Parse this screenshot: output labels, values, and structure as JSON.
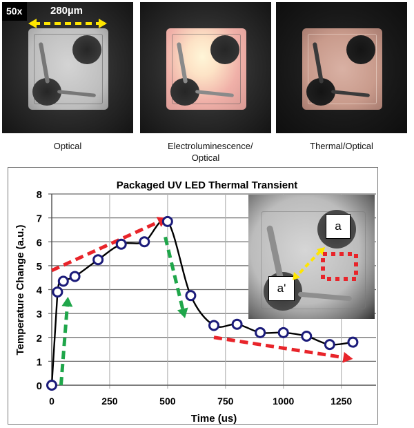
{
  "micrographs": [
    {
      "caption": "Optical",
      "magnification": "50x",
      "scale_bar": "280µm"
    },
    {
      "caption": "Electroluminescence/ Optical"
    },
    {
      "caption": "Thermal/Optical"
    }
  ],
  "inset": {
    "label_a": "a",
    "label_a_prime": "a'"
  },
  "colors": {
    "marker": "#1b1b7a",
    "line": "#000000",
    "heating_arrow": "#e8242a",
    "step_arrow": "#1fa64a",
    "scale_arrow": "#ffe600",
    "hotspot_box": "#e8242a"
  },
  "chart_data": {
    "type": "line",
    "title": "Packaged UV LED Thermal Transient",
    "xlabel": "Time (us)",
    "ylabel": "Temperature Change (a.u.)",
    "xlim": [
      0,
      1400
    ],
    "ylim": [
      0,
      8
    ],
    "xticks": [
      0,
      250,
      500,
      750,
      1000,
      1250
    ],
    "yticks": [
      0,
      1,
      2,
      3,
      4,
      5,
      6,
      7,
      8
    ],
    "grid": true,
    "legend": "none",
    "series": [
      {
        "name": "Temperature Change",
        "x": [
          0,
          25,
          50,
          100,
          200,
          300,
          400,
          500,
          600,
          700,
          800,
          900,
          1000,
          1100,
          1200,
          1300
        ],
        "y": [
          0,
          3.9,
          4.35,
          4.55,
          5.25,
          5.9,
          6.0,
          6.85,
          3.75,
          2.5,
          2.55,
          2.2,
          2.2,
          2.05,
          1.7,
          1.8
        ]
      }
    ],
    "annotations": [
      {
        "type": "arrow",
        "color": "red",
        "style": "dashed",
        "from": [
          0,
          4.8
        ],
        "to": [
          500,
          7.0
        ],
        "meaning": "heating trend"
      },
      {
        "type": "arrow",
        "color": "green",
        "style": "dashed",
        "from": [
          40,
          0
        ],
        "to": [
          70,
          3.7
        ],
        "meaning": "rise"
      },
      {
        "type": "arrow",
        "color": "green",
        "style": "dashed",
        "from": [
          490,
          6.2
        ],
        "to": [
          575,
          2.8
        ],
        "meaning": "fall"
      },
      {
        "type": "arrow",
        "color": "red",
        "style": "dashed",
        "from": [
          700,
          2.0
        ],
        "to": [
          1300,
          1.1
        ],
        "meaning": "cooling trend"
      }
    ]
  }
}
